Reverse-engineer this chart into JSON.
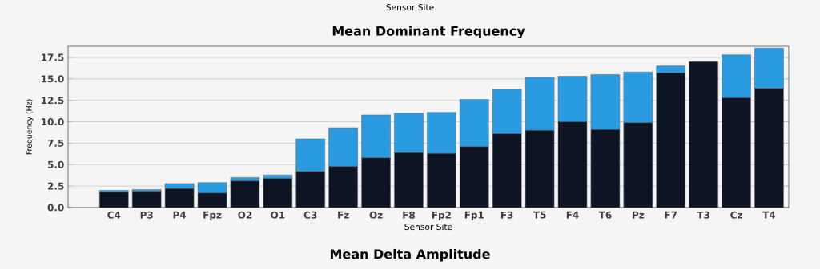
{
  "chart_data": {
    "type": "bar",
    "title": "Mean Dominant Frequency",
    "xlabel": "Sensor Site",
    "ylabel": "Frequency (Hz)",
    "categories": [
      "C4",
      "P3",
      "P4",
      "Fpz",
      "O2",
      "O1",
      "C3",
      "Fz",
      "Oz",
      "F8",
      "Fp2",
      "Fp1",
      "F3",
      "T5",
      "F4",
      "T6",
      "Pz",
      "F7",
      "T3",
      "Cz",
      "T4"
    ],
    "stacked": true,
    "series": [
      {
        "color": "#0d1525",
        "values": [
          1.8,
          1.9,
          2.2,
          1.7,
          3.1,
          3.4,
          4.2,
          4.8,
          5.8,
          6.4,
          6.3,
          7.1,
          8.6,
          9.0,
          10.0,
          9.1,
          9.9,
          15.7,
          17.0,
          12.8,
          13.9
        ]
      },
      {
        "color": "#2a9be0",
        "values": [
          0.2,
          0.2,
          0.6,
          1.2,
          0.4,
          0.4,
          3.8,
          4.5,
          5.0,
          4.6,
          4.8,
          5.5,
          5.2,
          6.2,
          5.3,
          6.4,
          5.9,
          0.8,
          0.0,
          5.0,
          4.7
        ]
      }
    ],
    "ylim": [
      0,
      18.8
    ],
    "yticks": [
      {
        "value": 0,
        "label": "0.0"
      },
      {
        "value": 2.5,
        "label": "2.5"
      },
      {
        "value": 5,
        "label": "5.0"
      },
      {
        "value": 7.5,
        "label": "7.5"
      },
      {
        "value": 10,
        "label": "10.0"
      },
      {
        "value": 12.5,
        "label": "12.5"
      },
      {
        "value": 15,
        "label": "15.0"
      },
      {
        "value": 17.5,
        "label": "17.5"
      }
    ],
    "grid": "y",
    "annotations": [
      "Sensor Site",
      "Mean Delta Amplitude"
    ]
  }
}
